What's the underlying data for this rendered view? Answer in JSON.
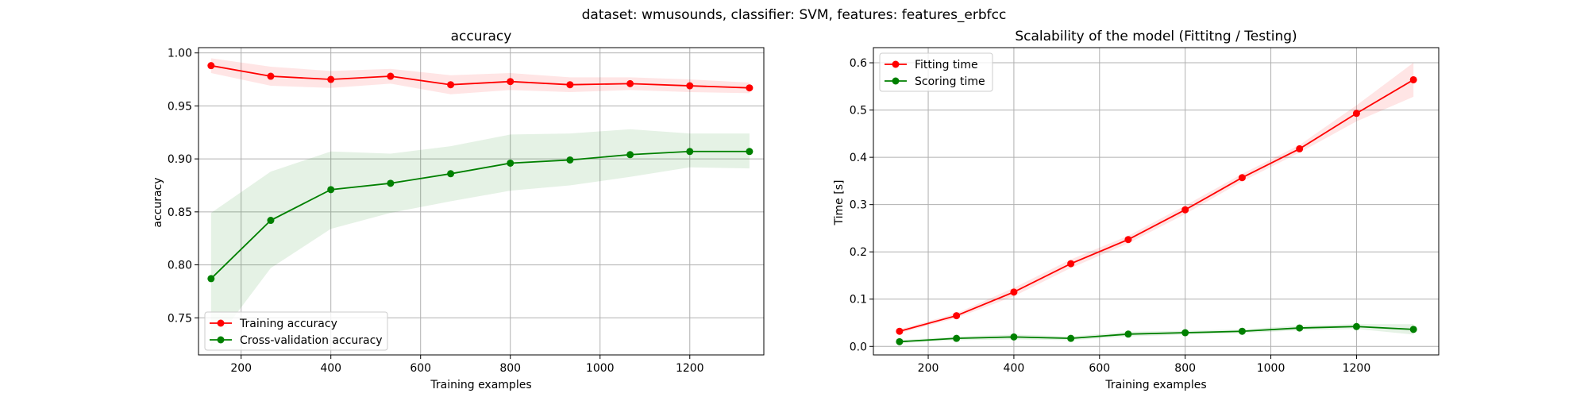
{
  "suptitle": "dataset: wmusounds, classifier: SVM, features: features_erbfcc",
  "chart_data": [
    {
      "type": "line",
      "title": "accuracy",
      "xlabel": "Training examples",
      "ylabel": "accuracy",
      "xlim": [
        105,
        1365
      ],
      "ylim": [
        0.715,
        1.005
      ],
      "xticks": [
        200,
        400,
        600,
        800,
        1000,
        1200
      ],
      "yticks": [
        0.75,
        0.8,
        0.85,
        0.9,
        0.95,
        1.0
      ],
      "ytick_labels": [
        "0.75",
        "0.80",
        "0.85",
        "0.90",
        "0.95",
        "1.00"
      ],
      "grid": true,
      "legend_position": "lower-left",
      "x": [
        133,
        266,
        400,
        533,
        667,
        800,
        933,
        1067,
        1200,
        1333
      ],
      "series": [
        {
          "name": "Training accuracy",
          "color": "#ff0000",
          "band_color": "#ff0000",
          "values": [
            0.988,
            0.978,
            0.975,
            0.978,
            0.97,
            0.973,
            0.97,
            0.971,
            0.969,
            0.967
          ],
          "lower": [
            0.981,
            0.969,
            0.967,
            0.971,
            0.961,
            0.965,
            0.963,
            0.965,
            0.963,
            0.962
          ],
          "upper": [
            0.995,
            0.987,
            0.983,
            0.985,
            0.979,
            0.981,
            0.977,
            0.977,
            0.975,
            0.972
          ]
        },
        {
          "name": "Cross-validation accuracy",
          "color": "#008000",
          "band_color": "#008000",
          "values": [
            0.787,
            0.842,
            0.871,
            0.877,
            0.886,
            0.896,
            0.899,
            0.904,
            0.907,
            0.907
          ],
          "lower": [
            0.722,
            0.797,
            0.834,
            0.849,
            0.86,
            0.87,
            0.875,
            0.883,
            0.892,
            0.891
          ],
          "upper": [
            0.849,
            0.888,
            0.907,
            0.905,
            0.912,
            0.923,
            0.924,
            0.928,
            0.924,
            0.924
          ]
        }
      ]
    },
    {
      "type": "line",
      "title": "Scalability of the model (Fittitng / Testing)",
      "xlabel": "Training examples",
      "ylabel": "Time [s]",
      "xlim": [
        72,
        1392
      ],
      "ylim": [
        -0.018,
        0.632
      ],
      "xticks": [
        200,
        400,
        600,
        800,
        1000,
        1200
      ],
      "yticks": [
        0.0,
        0.1,
        0.2,
        0.3,
        0.4,
        0.5,
        0.6
      ],
      "ytick_labels": [
        "0.0",
        "0.1",
        "0.2",
        "0.3",
        "0.4",
        "0.5",
        "0.6"
      ],
      "grid": true,
      "legend_position": "upper-left",
      "x": [
        133,
        266,
        400,
        533,
        667,
        800,
        933,
        1067,
        1200,
        1333
      ],
      "series": [
        {
          "name": "Fitting time",
          "color": "#ff0000",
          "band_color": "#ff0000",
          "values": [
            0.032,
            0.065,
            0.115,
            0.175,
            0.226,
            0.289,
            0.357,
            0.418,
            0.493,
            0.564
          ],
          "lower": [
            0.028,
            0.06,
            0.106,
            0.166,
            0.218,
            0.28,
            0.349,
            0.41,
            0.476,
            0.528
          ],
          "upper": [
            0.036,
            0.07,
            0.124,
            0.184,
            0.234,
            0.298,
            0.365,
            0.426,
            0.51,
            0.6
          ]
        },
        {
          "name": "Scoring time",
          "color": "#008000",
          "band_color": "#008000",
          "values": [
            0.01,
            0.017,
            0.02,
            0.017,
            0.026,
            0.029,
            0.032,
            0.039,
            0.042,
            0.036
          ],
          "lower": [
            0.007,
            0.013,
            0.015,
            0.013,
            0.021,
            0.025,
            0.028,
            0.034,
            0.037,
            0.025
          ],
          "upper": [
            0.013,
            0.021,
            0.025,
            0.021,
            0.031,
            0.033,
            0.036,
            0.044,
            0.047,
            0.047
          ]
        }
      ]
    }
  ]
}
